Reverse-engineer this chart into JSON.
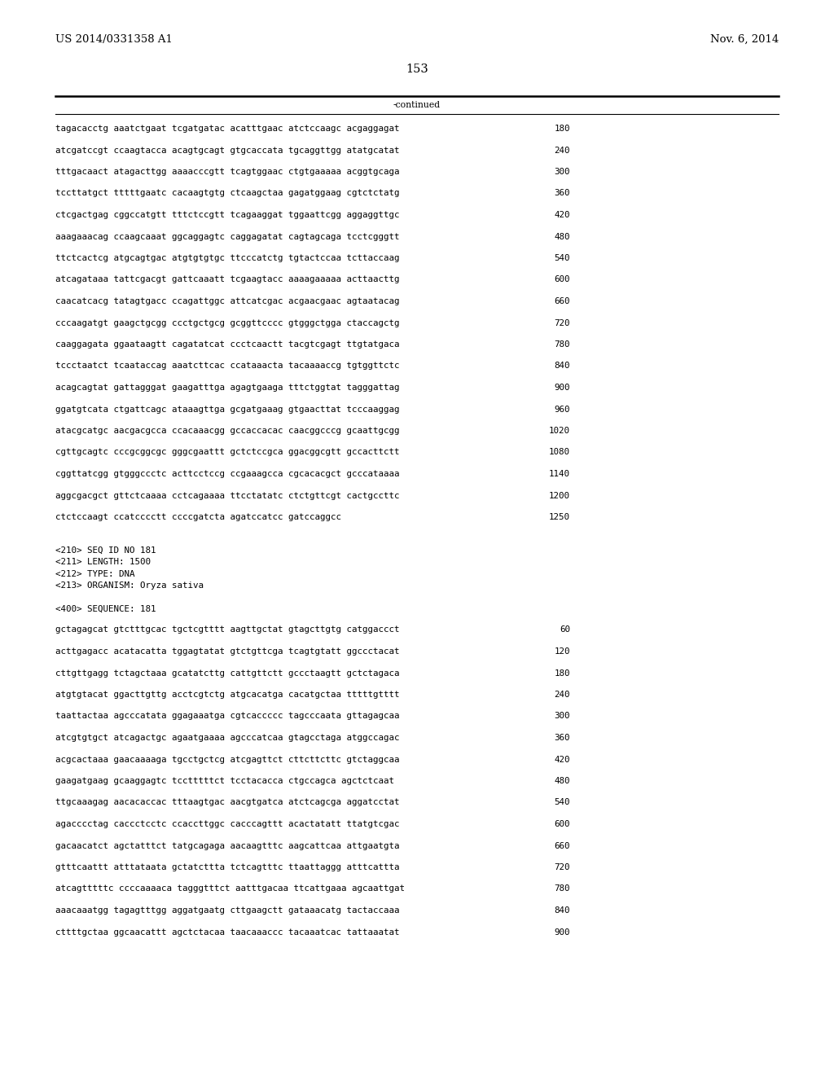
{
  "header_left": "US 2014/0331358 A1",
  "header_right": "Nov. 6, 2014",
  "page_number": "153",
  "continued_text": "-continued",
  "background_color": "#ffffff",
  "text_color": "#000000",
  "sequence_lines_top": [
    [
      "tagacacctg aaatctgaat tcgatgatac acatttgaac atctccaagc acgaggagat",
      "180"
    ],
    [
      "atcgatccgt ccaagtacca acagtgcagt gtgcaccata tgcaggttgg atatgcatat",
      "240"
    ],
    [
      "tttgacaact atagacttgg aaaacccgtt tcagtggaac ctgtgaaaaa acggtgcaga",
      "300"
    ],
    [
      "tccttatgct tttttgaatc cacaagtgtg ctcaagctaa gagatggaag cgtctctatg",
      "360"
    ],
    [
      "ctcgactgag cggccatgtt tttctccgtt tcagaaggat tggaattcgg aggaggttgc",
      "420"
    ],
    [
      "aaagaaacag ccaagcaaat ggcaggagtc caggagatat cagtagcaga tcctcgggtt",
      "480"
    ],
    [
      "ttctcactcg atgcagtgac atgtgtgtgc ttcccatctg tgtactccaa tcttaccaag",
      "540"
    ],
    [
      "atcagataaa tattcgacgt gattcaaatt tcgaagtacc aaaagaaaaa acttaacttg",
      "600"
    ],
    [
      "caacatcacg tatagtgacc ccagattggc attcatcgac acgaacgaac agtaatacag",
      "660"
    ],
    [
      "cccaagatgt gaagctgcgg ccctgctgcg gcggttcccc gtgggctgga ctaccagctg",
      "720"
    ],
    [
      "caaggagata ggaataagtt cagatatcat ccctcaactt tacgtcgagt ttgtatgaca",
      "780"
    ],
    [
      "tccctaatct tcaataccag aaatcttcac ccataaacta tacaaaaccg tgtggttctc",
      "840"
    ],
    [
      "acagcagtat gattagggat gaagatttga agagtgaaga tttctggtat tagggattag",
      "900"
    ],
    [
      "ggatgtcata ctgattcagc ataaagttga gcgatgaaag gtgaacttat tcccaaggag",
      "960"
    ],
    [
      "atacgcatgc aacgacgcca ccacaaacgg gccaccacac caacggcccg gcaattgcgg",
      "1020"
    ],
    [
      "cgttgcagtc cccgcggcgc gggcgaattt gctctccgca ggacggcgtt gccacttctt",
      "1080"
    ],
    [
      "cggttatcgg gtgggccctc acttcctccg ccgaaagcca cgcacacgct gcccataaaa",
      "1140"
    ],
    [
      "aggcgacgct gttctcaaaa cctcagaaaa ttcctatatc ctctgttcgt cactgccttc",
      "1200"
    ],
    [
      "ctctccaagt ccatcccctt ccccgatcta agatccatcc gatccaggcc",
      "1250"
    ]
  ],
  "metadata_lines": [
    "<210> SEQ ID NO 181",
    "<211> LENGTH: 1500",
    "<212> TYPE: DNA",
    "<213> ORGANISM: Oryza sativa"
  ],
  "sequence_label": "<400> SEQUENCE: 181",
  "sequence_lines_bottom": [
    [
      "gctagagcat gtctttgcac tgctcgtttt aagttgctat gtagcttgtg catggaccct",
      "60"
    ],
    [
      "acttgagacc acatacatta tggagtatat gtctgttcga tcagtgtatt ggccctacat",
      "120"
    ],
    [
      "cttgttgagg tctagctaaa gcatatcttg cattgttctt gccctaagtt gctctagaca",
      "180"
    ],
    [
      "atgtgtacat ggacttgttg acctcgtctg atgcacatga cacatgctaa tttttgtttt",
      "240"
    ],
    [
      "taattactaa agcccatata ggagaaatga cgtcaccccc tagcccaata gttagagcaa",
      "300"
    ],
    [
      "atcgtgtgct atcagactgc agaatgaaaa agcccatcaa gtagcctaga atggccagac",
      "360"
    ],
    [
      "acgcactaaa gaacaaaaga tgcctgctcg atcgagttct cttcttcttc gtctaggcaa",
      "420"
    ],
    [
      "gaagatgaag gcaaggagtc tcctttttct tcctacacca ctgccagca agctctcaat",
      "480"
    ],
    [
      "ttgcaaagag aacacaccac tttaagtgac aacgtgatca atctcagcga aggatcctat",
      "540"
    ],
    [
      "agacccctag caccctcctc ccaccttggc cacccagttt acactatatt ttatgtcgac",
      "600"
    ],
    [
      "gacaacatct agctatttct tatgcagaga aacaagtttc aagcattcaa attgaatgta",
      "660"
    ],
    [
      "gtttcaattt atttataata gctatcttta tctcagtttc ttaattaggg atttcattta",
      "720"
    ],
    [
      "atcagtttttc ccccaaaaca tagggtttct aatttgacaa ttcattgaaa agcaattgat",
      "780"
    ],
    [
      "aaacaaatgg tagagtttgg aggatgaatg cttgaagctt gataaacatg tactaccaaa",
      "840"
    ],
    [
      "cttttgctaa ggcaacattt agctctacaa taacaaaccc tacaaatcac tattaaatat",
      "900"
    ]
  ]
}
